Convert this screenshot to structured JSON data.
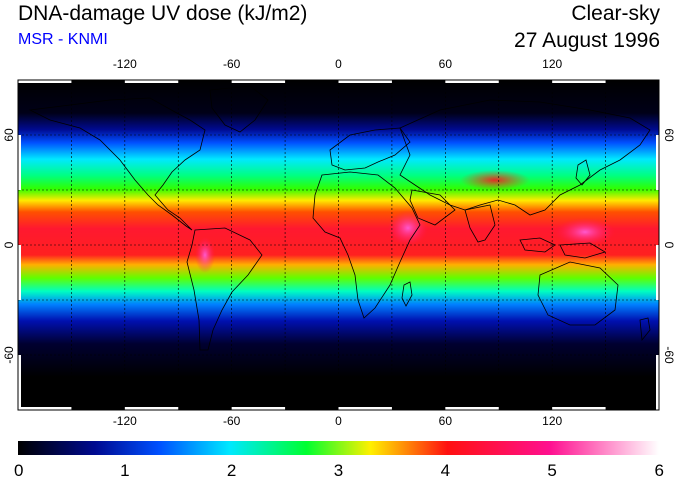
{
  "header": {
    "title": "DNA-damage UV dose (kJ/m2)",
    "subtitle": "MSR - KNMI",
    "condition": "Clear-sky",
    "date": "27 August 1996"
  },
  "map": {
    "projection": "equirectangular",
    "lon_range": [
      -180,
      180
    ],
    "lat_range": [
      -90,
      90
    ],
    "gridlines": true,
    "longitude_ticks": [
      "-120",
      "-60",
      "0",
      "60",
      "120"
    ],
    "latitude_ticks": [
      "60",
      "0",
      "-60"
    ],
    "longitude_values": [
      -120,
      -60,
      0,
      60,
      120
    ],
    "latitude_values": [
      60,
      0,
      -60
    ]
  },
  "colorbar": {
    "min": 0,
    "max": 6,
    "tick_labels": [
      "0",
      "1",
      "2",
      "3",
      "4",
      "5",
      "6"
    ],
    "tick_values": [
      0,
      1,
      2,
      3,
      4,
      5,
      6
    ],
    "colors": [
      "#000000",
      "#000a90",
      "#0050ff",
      "#00e8ff",
      "#00ff30",
      "#fff000",
      "#ff1010",
      "#ff1090",
      "#ffffff"
    ]
  },
  "colors": {
    "subtitle": "#0000ff",
    "coastline": "#000000",
    "grid": "#000000"
  }
}
